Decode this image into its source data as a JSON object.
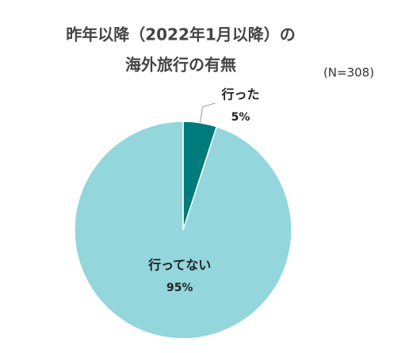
{
  "chart_data": {
    "type": "pie",
    "title": [
      "昨年以降（2022年1月以降）の",
      "海外旅行の有無"
    ],
    "subtitle": "(N=308)",
    "categories": [
      "行った",
      "行ってない"
    ],
    "values": [
      5,
      95
    ],
    "value_labels": [
      "5%",
      "95%"
    ],
    "colors": [
      "#007b7b",
      "#93d6dc"
    ]
  }
}
